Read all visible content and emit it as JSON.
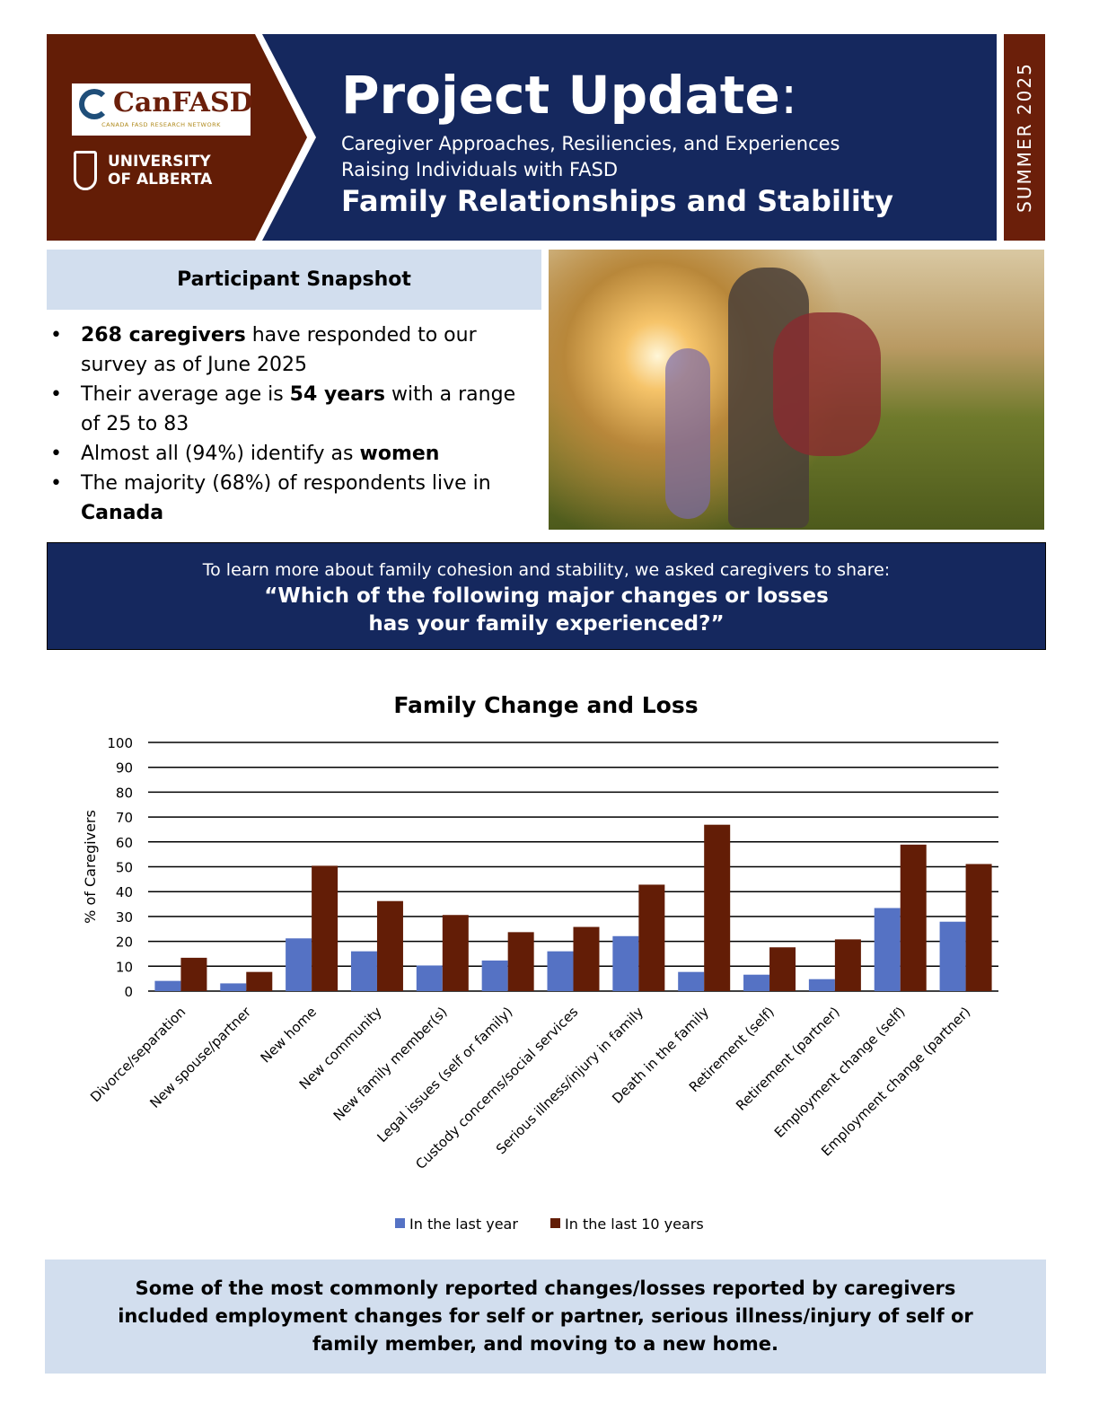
{
  "header": {
    "logo_canfasd": "CanFASD",
    "logo_canfasd_sub": "CANADA FASD RESEARCH NETWORK",
    "logo_university_line1": "UNIVERSITY",
    "logo_university_line2": "OF ALBERTA",
    "title": "Project Update",
    "title_colon": ":",
    "subtitle_line1": "Caregiver Approaches, Resiliencies, and Experiences",
    "subtitle_line2": "Raising Individuals with FASD",
    "topic": "Family Relationships and Stability",
    "season": "SUMMER 2025"
  },
  "snapshot": {
    "heading": "Participant Snapshot",
    "items": [
      {
        "bold": "268 caregivers",
        "text": " have responded to our survey as of June 2025"
      },
      {
        "pre": "Their average age is ",
        "bold": "54 years",
        "text": " with a range of 25 to 83"
      },
      {
        "pre": "Almost all (94%) identify as ",
        "bold": "women"
      },
      {
        "pre": "The majority (68%) of respondents live in ",
        "bold": "Canada"
      }
    ]
  },
  "banner": {
    "intro": "To learn more about family cohesion and stability, we asked caregivers to share:",
    "question_line1": "“Which of the following major changes or losses",
    "question_line2": "has your family experienced?”"
  },
  "chart_data": {
    "type": "bar",
    "title": "Family Change and Loss",
    "ylabel": "% of Caregivers",
    "xlabel": "",
    "ylim": [
      0,
      100
    ],
    "yticks": [
      0,
      10,
      20,
      30,
      40,
      50,
      60,
      70,
      80,
      90,
      100
    ],
    "grid": true,
    "legend": "bottom",
    "categories": [
      "Divorce/separation",
      "New spouse/partner",
      "New home",
      "New community",
      "New family member(s)",
      "Legal issues (self or family)",
      "Custody concerns/social services",
      "Serious illness/injury in family",
      "Death in the family",
      "Retirement (self)",
      "Retirement (partner)",
      "Employment change (self)",
      "Employment change (partner)"
    ],
    "series": [
      {
        "name": "In the last year",
        "color": "#5572c4",
        "values": [
          4.1,
          3.1,
          21.2,
          16,
          10.3,
          12.3,
          16,
          22.1,
          7.7,
          6.6,
          4.8,
          33.4,
          27.9
        ]
      },
      {
        "name": "In the last 10 years",
        "color": "#631d06",
        "values": [
          13.4,
          7.7,
          50.4,
          36.2,
          30.6,
          23.7,
          25.8,
          42.8,
          66.9,
          17.6,
          20.8,
          58.9,
          51.1
        ]
      }
    ]
  },
  "summary": "Some of the most commonly reported changes/losses reported by caregivers included employment changes for self or partner, serious illness/injury of self or family member, and moving to a new home."
}
